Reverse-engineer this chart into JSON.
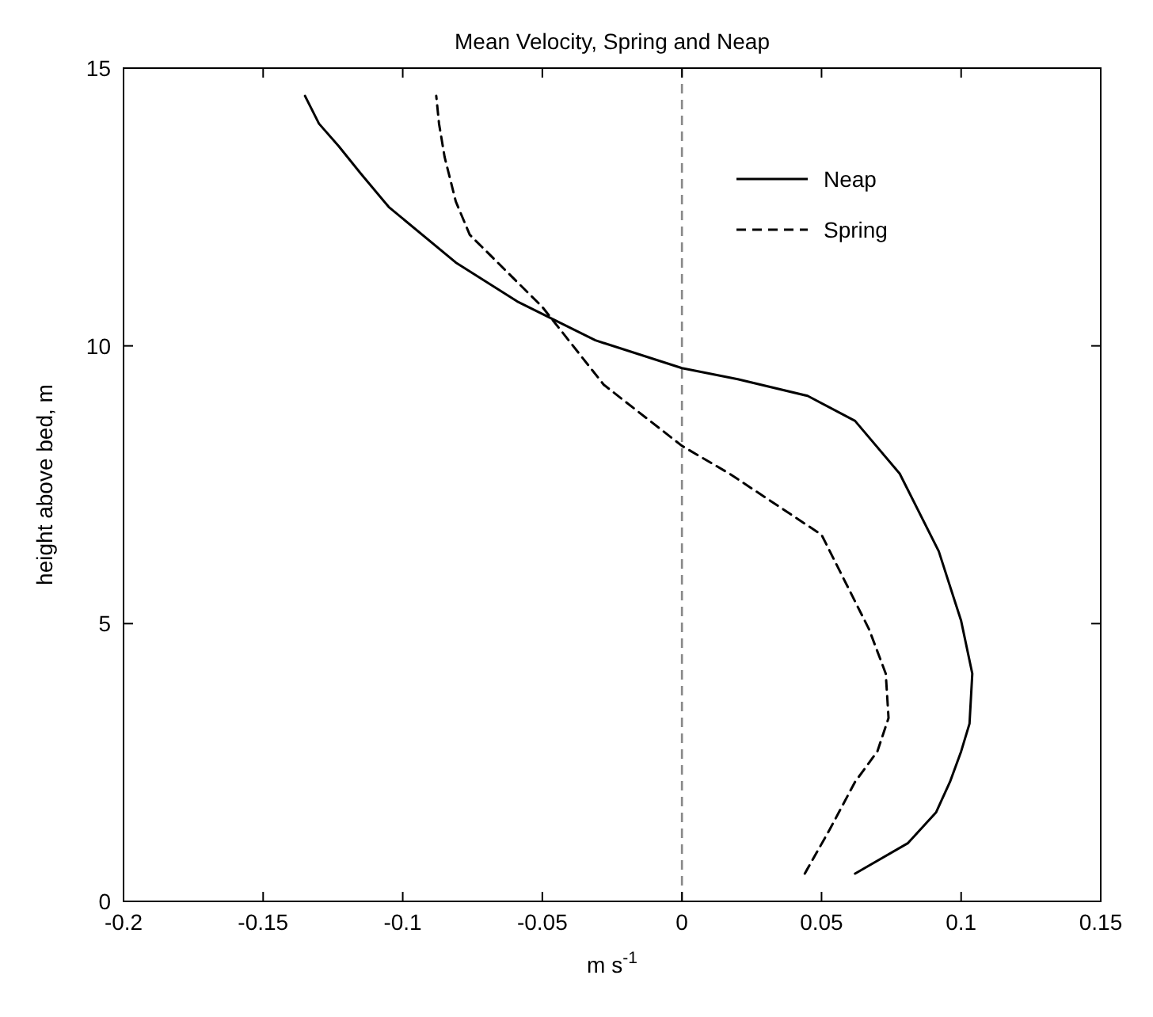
{
  "chart_data": {
    "type": "line",
    "title": "Mean Velocity, Spring and Neap",
    "xlabel": "m s$^{-1}$",
    "ylabel": "height above bed, m",
    "xlim": [
      -0.2,
      0.15
    ],
    "xticks": [
      -0.2,
      -0.15,
      -0.1,
      -0.05,
      0,
      0.05,
      0.1,
      0.15
    ],
    "ylim": [
      0,
      15
    ],
    "yticks": [
      0,
      5,
      10,
      15
    ],
    "grid": false,
    "legend": "top right",
    "series": [
      {
        "name": "Neap",
        "color": "#000000",
        "line_style": "solid",
        "x": [
          0.062,
          0.081,
          0.091,
          0.096,
          0.1,
          0.103,
          0.104,
          0.1,
          0.092,
          0.078,
          0.062,
          0.045,
          0.02,
          0,
          -0.031,
          -0.059,
          -0.081,
          -0.105,
          -0.115,
          -0.123,
          -0.13,
          -0.135
        ],
        "values": [
          0.5,
          1.05,
          1.6,
          2.15,
          2.7,
          3.2,
          4.1,
          5.05,
          6.3,
          7.7,
          8.65,
          9.1,
          9.4,
          9.6,
          10.1,
          10.8,
          11.5,
          12.5,
          13.1,
          13.6,
          14,
          14.5
        ]
      },
      {
        "name": "Spring",
        "color": "#000000",
        "line_style": "dashed",
        "x": [
          0.044,
          0.053,
          0.062,
          0.07,
          0.074,
          0.073,
          0.067,
          0.05,
          0.017,
          0,
          -0.028,
          -0.05,
          -0.064,
          -0.076,
          -0.081,
          -0.085,
          -0.087,
          -0.088
        ],
        "values": [
          0.5,
          1.3,
          2.15,
          2.7,
          3.3,
          4.1,
          4.9,
          6.6,
          7.7,
          8.2,
          9.3,
          10.7,
          11.4,
          12,
          12.6,
          13.4,
          14,
          14.5
        ]
      }
    ],
    "ref_lines": [
      {
        "axis": "x",
        "value": 0,
        "color": "#888888",
        "line_style": "dashed"
      }
    ]
  }
}
